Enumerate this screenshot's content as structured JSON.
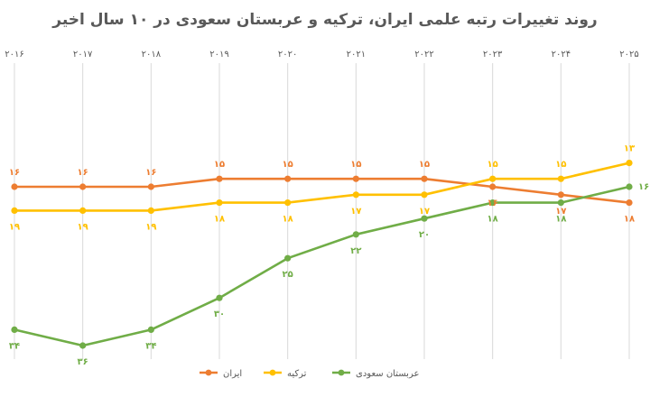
{
  "chart_data": {
    "type": "line",
    "title": "روند تغییرات رتبه علمی ایران، ترکیه و عربستان سعودی در ۱۰ سال اخیر",
    "xlabel": "",
    "ylabel": "",
    "categories": [
      "۲۰۱۶",
      "۲۰۱۷",
      "۲۰۱۸",
      "۲۰۱۹",
      "۲۰۲۰",
      "۲۰۲۱",
      "۲۰۲۲",
      "۲۰۲۳",
      "۲۰۲۴",
      "۲۰۲۵"
    ],
    "x_axis_position": "top",
    "x_order": "left-to-right",
    "y_inverted": true,
    "ylim": [
      12,
      37
    ],
    "grid": "vertical",
    "legend_position": "bottom",
    "series": [
      {
        "name": "ایران",
        "color": "#ed7d31",
        "values": [
          16,
          16,
          16,
          15,
          15,
          15,
          15,
          16,
          17,
          18
        ],
        "labels": [
          "۱۶",
          "۱۶",
          "۱۶",
          "۱۵",
          "۱۵",
          "۱۵",
          "۱۵",
          "۱۶",
          "۱۷",
          "۱۸"
        ],
        "label_side": [
          "above",
          "above",
          "above",
          "above",
          "above",
          "above",
          "above",
          "below",
          "below",
          "below"
        ]
      },
      {
        "name": "ترکیه",
        "color": "#ffc000",
        "values": [
          19,
          19,
          19,
          18,
          18,
          17,
          17,
          15,
          15,
          13
        ],
        "labels": [
          "۱۹",
          "۱۹",
          "۱۹",
          "۱۸",
          "۱۸",
          "۱۷",
          "۱۷",
          "۱۵",
          "۱۵",
          "۱۳"
        ],
        "label_side": [
          "below",
          "below",
          "below",
          "below",
          "below",
          "below",
          "below",
          "above",
          "above",
          "above"
        ]
      },
      {
        "name": "عربستان سعودی",
        "color": "#70ad47",
        "values": [
          34,
          36,
          34,
          30,
          25,
          22,
          20,
          18,
          18,
          16
        ],
        "labels": [
          "۳۴",
          "۳۶",
          "۳۴",
          "۳۰",
          "۲۵",
          "۲۲",
          "۲۰",
          "۱۸",
          "۱۸",
          "۱۶"
        ],
        "label_side": [
          "below",
          "below",
          "below",
          "below",
          "below",
          "below",
          "below",
          "below",
          "below",
          "right"
        ]
      }
    ]
  }
}
